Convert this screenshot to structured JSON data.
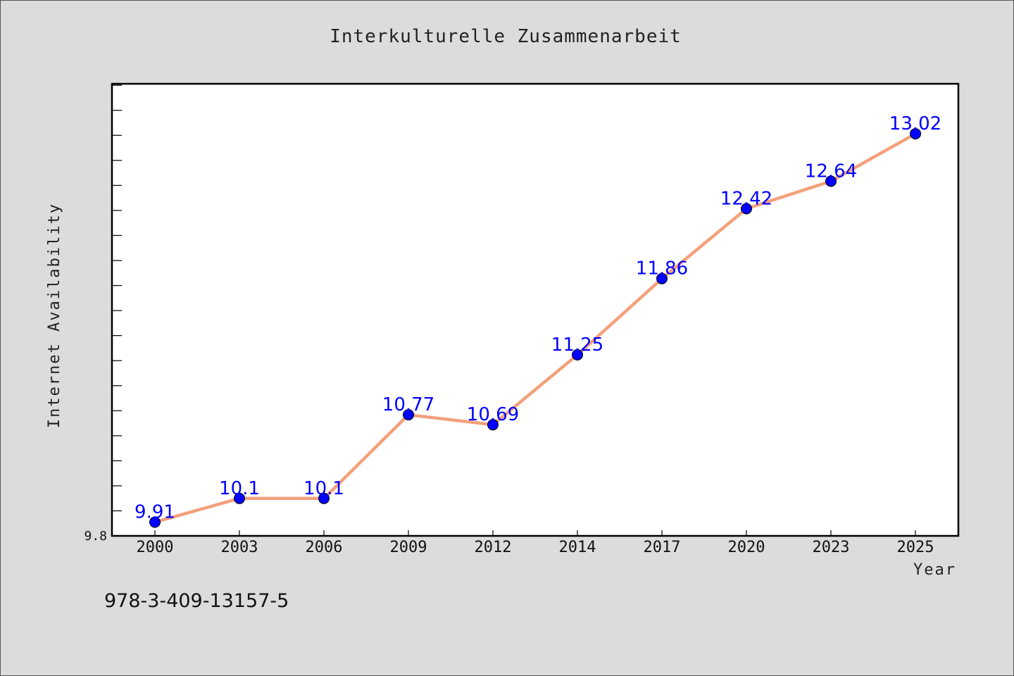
{
  "chart_data": {
    "type": "line",
    "title": "Interkulturelle Zusammenarbeit",
    "xlabel": "Year",
    "ylabel": "Internet Availability",
    "categories": [
      "2000",
      "2003",
      "2006",
      "2009",
      "2012",
      "2014",
      "2017",
      "2020",
      "2023",
      "2025"
    ],
    "series": [
      {
        "values": [
          9.91,
          10.1,
          10.1,
          10.77,
          10.69,
          11.25,
          11.86,
          12.42,
          12.64,
          13.02
        ],
        "labels": [
          "9.91",
          "10.1",
          "10.1",
          "10.77",
          "10.69",
          "11.25",
          "11.86",
          "12.42",
          "12.64",
          "13.02"
        ],
        "line_color": "#f4a07c",
        "marker_color": "#0000ff"
      }
    ],
    "ylim": [
      9.8,
      13.42
    ],
    "ytick_label": "9.8",
    "grid": false,
    "legend": false
  },
  "footer_text": "978-3-409-13157-5"
}
